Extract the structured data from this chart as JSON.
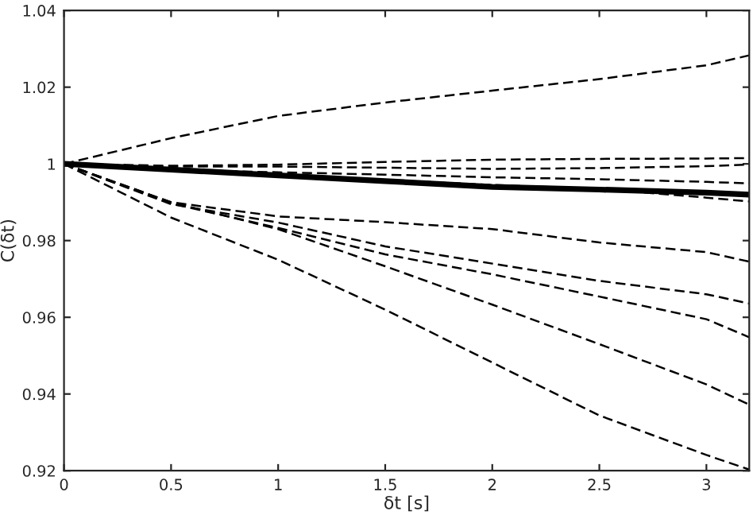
{
  "chart_data": {
    "type": "line",
    "xlabel": "δt [s]",
    "ylabel": "C(δt)",
    "x": [
      0,
      0.5,
      1,
      1.5,
      2,
      2.5,
      3,
      3.2
    ],
    "series": [
      {
        "color": "#000000",
        "line_style": "dashed",
        "values": [
          1,
          1.0067,
          1.0125,
          1.016,
          1.0191,
          1.0221,
          1.0257,
          1.0283
        ]
      },
      {
        "color": "#000000",
        "line_style": "dashed",
        "values": [
          1,
          0.9995,
          0.9998,
          1.0005,
          1.0011,
          1.0013,
          1.0014,
          1.0015
        ]
      },
      {
        "color": "#000000",
        "line_style": "dashed",
        "values": [
          1,
          0.9993,
          0.9993,
          0.999,
          0.9987,
          0.9989,
          0.9994,
          0.9998
        ]
      },
      {
        "color": "#000000",
        "line_style": "dashed",
        "values": [
          1,
          0.9985,
          0.9978,
          0.9972,
          0.9965,
          0.996,
          0.9953,
          0.9949
        ]
      },
      {
        "color": "#000000",
        "line_style": "dashed",
        "values": [
          1,
          0.9983,
          0.9972,
          0.9958,
          0.9945,
          0.9935,
          0.9912,
          0.9902
        ]
      },
      {
        "color": "#000000",
        "line_style": "dashed",
        "values": [
          1,
          0.99,
          0.9863,
          0.9848,
          0.983,
          0.9795,
          0.977,
          0.9745
        ]
      },
      {
        "color": "#000000",
        "line_style": "dashed",
        "values": [
          1,
          0.9895,
          0.9847,
          0.9785,
          0.974,
          0.9695,
          0.966,
          0.9636
        ]
      },
      {
        "color": "#000000",
        "line_style": "dashed",
        "values": [
          1,
          0.9897,
          0.9833,
          0.9764,
          0.9712,
          0.9654,
          0.9595,
          0.9548
        ]
      },
      {
        "color": "#000000",
        "line_style": "dashed",
        "values": [
          1,
          0.99,
          0.983,
          0.9733,
          0.9633,
          0.953,
          0.9425,
          0.9372
        ]
      },
      {
        "color": "#000000",
        "line_style": "dashed",
        "values": [
          1,
          0.986,
          0.975,
          0.962,
          0.9482,
          0.9344,
          0.9241,
          0.9203
        ]
      },
      {
        "color": "#000000",
        "line_style": "solid",
        "values": [
          1,
          0.9985,
          0.997,
          0.9955,
          0.994,
          0.9933,
          0.9925,
          0.992
        ]
      }
    ],
    "xlim": [
      0,
      3.2
    ],
    "xticks": [
      0,
      0.5,
      1,
      1.5,
      2,
      2.5,
      3
    ],
    "ylim": [
      0.92,
      1.04
    ],
    "yticks": [
      0.92,
      0.94,
      0.96,
      0.98,
      1,
      1.02,
      1.04
    ],
    "grid": false,
    "legend": false,
    "marker": "none"
  }
}
